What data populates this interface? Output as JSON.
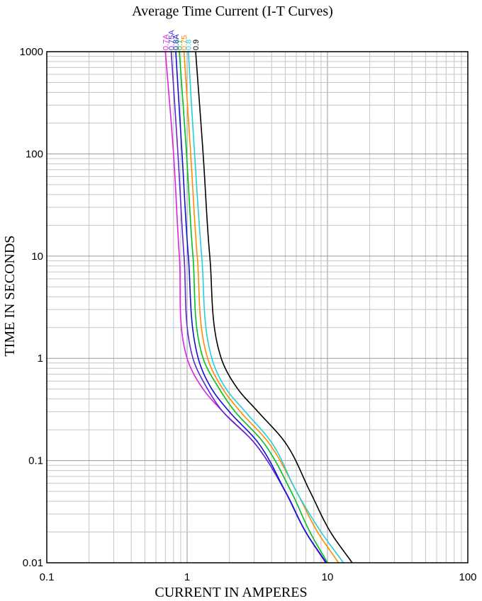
{
  "chart_data": {
    "type": "line",
    "title": "Average Time Current (I-T Curves)",
    "xlabel": "CURRENT IN AMPERES",
    "ylabel": "TIME IN SECONDS",
    "x_scale": "log",
    "y_scale": "log",
    "xlim": [
      0.1,
      100
    ],
    "ylim": [
      0.01,
      1000
    ],
    "x_ticks": [
      "0.1",
      "1",
      "10",
      "100"
    ],
    "y_ticks": [
      "0.01",
      "0.1",
      "1",
      "10",
      "100",
      "1000"
    ],
    "grid": true,
    "series": [
      {
        "name": "0.7A",
        "color": "#e020e0",
        "points": [
          [
            0.7,
            1000
          ],
          [
            0.8,
            100
          ],
          [
            0.88,
            10
          ],
          [
            1.0,
            1
          ],
          [
            1.3,
            0.5
          ],
          [
            1.8,
            0.3
          ],
          [
            3.0,
            0.15
          ],
          [
            5.0,
            0.05
          ],
          [
            7.0,
            0.02
          ],
          [
            9.7,
            0.01
          ]
        ]
      },
      {
        "name": "0.75A",
        "color": "#5a2ad0",
        "points": [
          [
            0.77,
            1000
          ],
          [
            0.86,
            100
          ],
          [
            0.95,
            10
          ],
          [
            1.1,
            1
          ],
          [
            1.4,
            0.5
          ],
          [
            1.8,
            0.3
          ],
          [
            3.0,
            0.15
          ],
          [
            5.0,
            0.05
          ],
          [
            7.0,
            0.02
          ],
          [
            9.8,
            0.01
          ]
        ]
      },
      {
        "name": "0.8A",
        "color": "#1010d0",
        "points": [
          [
            0.83,
            1000
          ],
          [
            0.92,
            100
          ],
          [
            1.02,
            10
          ],
          [
            1.2,
            1
          ],
          [
            1.5,
            0.5
          ],
          [
            2.0,
            0.3
          ],
          [
            3.2,
            0.15
          ],
          [
            5.0,
            0.05
          ],
          [
            7.0,
            0.02
          ],
          [
            9.8,
            0.01
          ]
        ]
      },
      {
        "name": "0.7",
        "color": "#00c020",
        "points": [
          [
            0.88,
            1000
          ],
          [
            0.99,
            100
          ],
          [
            1.1,
            10
          ],
          [
            1.3,
            1
          ],
          [
            1.7,
            0.5
          ],
          [
            2.2,
            0.3
          ],
          [
            3.5,
            0.15
          ],
          [
            5.5,
            0.05
          ],
          [
            7.5,
            0.02
          ],
          [
            10.0,
            0.01
          ]
        ]
      },
      {
        "name": "0.75",
        "color": "#ff8c00",
        "points": [
          [
            0.95,
            1000
          ],
          [
            1.06,
            100
          ],
          [
            1.18,
            10
          ],
          [
            1.4,
            1
          ],
          [
            1.8,
            0.5
          ],
          [
            2.4,
            0.3
          ],
          [
            3.8,
            0.15
          ],
          [
            6.0,
            0.05
          ],
          [
            8.5,
            0.02
          ],
          [
            12.0,
            0.01
          ]
        ]
      },
      {
        "name": "0.8",
        "color": "#20d0d8",
        "points": [
          [
            1.02,
            1000
          ],
          [
            1.13,
            100
          ],
          [
            1.27,
            10
          ],
          [
            1.5,
            1
          ],
          [
            1.9,
            0.5
          ],
          [
            2.6,
            0.3
          ],
          [
            4.0,
            0.15
          ],
          [
            6.0,
            0.05
          ],
          [
            9.0,
            0.02
          ],
          [
            13.0,
            0.01
          ]
        ]
      },
      {
        "name": "0.9",
        "color": "#000000",
        "points": [
          [
            1.15,
            1000
          ],
          [
            1.3,
            100
          ],
          [
            1.45,
            10
          ],
          [
            1.75,
            1
          ],
          [
            2.3,
            0.5
          ],
          [
            3.2,
            0.3
          ],
          [
            5.0,
            0.15
          ],
          [
            7.5,
            0.05
          ],
          [
            10.5,
            0.02
          ],
          [
            15.0,
            0.01
          ]
        ]
      }
    ]
  }
}
